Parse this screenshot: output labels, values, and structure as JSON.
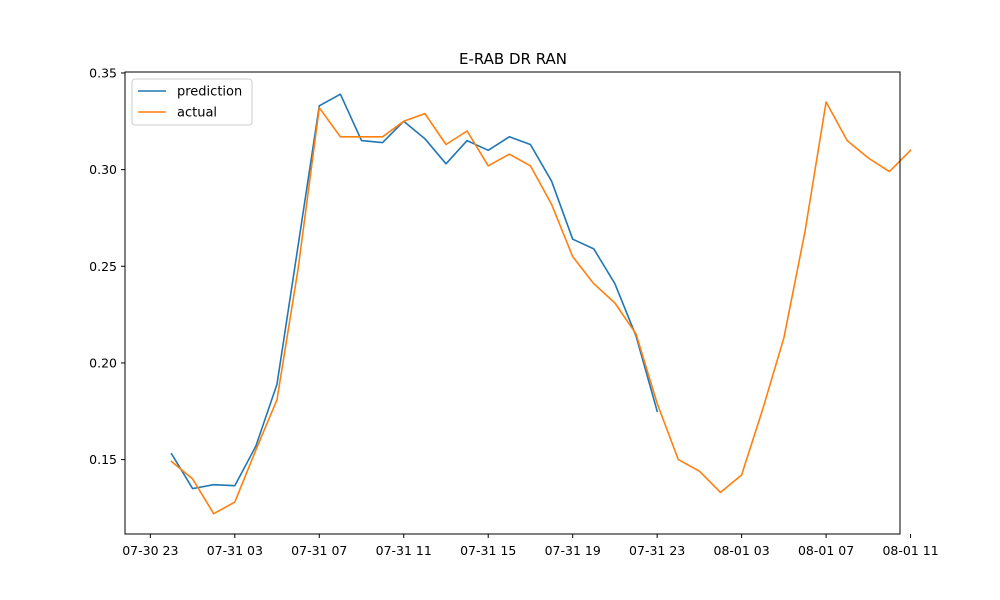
{
  "chart_data": {
    "type": "line",
    "title": "E-RAB DR RAN",
    "xlabel": "",
    "ylabel": "",
    "x_unit": "hour",
    "xlim": [
      -1.2,
      35.5
    ],
    "ylim": [
      0.1115,
      0.3505
    ],
    "x_ticks": [
      {
        "pos": 0,
        "label": "07-30 23"
      },
      {
        "pos": 4,
        "label": "07-31 03"
      },
      {
        "pos": 8,
        "label": "07-31 07"
      },
      {
        "pos": 12,
        "label": "07-31 11"
      },
      {
        "pos": 16,
        "label": "07-31 15"
      },
      {
        "pos": 20,
        "label": "07-31 19"
      },
      {
        "pos": 24,
        "label": "07-31 23"
      },
      {
        "pos": 28,
        "label": "08-01 03"
      },
      {
        "pos": 32,
        "label": "08-01 07"
      },
      {
        "pos": 36,
        "label": "08-01 11"
      }
    ],
    "y_ticks": [
      {
        "pos": 0.15,
        "label": "0.15"
      },
      {
        "pos": 0.2,
        "label": "0.20"
      },
      {
        "pos": 0.25,
        "label": "0.25"
      },
      {
        "pos": 0.3,
        "label": "0.30"
      },
      {
        "pos": 0.35,
        "label": "0.35"
      }
    ],
    "legend_position": "top-left",
    "series": [
      {
        "name": "prediction",
        "color": "#1f77b4",
        "x": [
          1,
          2,
          3,
          4,
          5,
          6,
          7,
          8,
          9,
          10,
          11,
          12,
          13,
          14,
          15,
          16,
          17,
          18,
          19,
          20,
          21,
          22,
          23,
          24
        ],
        "values": [
          0.153,
          0.135,
          0.137,
          0.1365,
          0.157,
          0.189,
          0.261,
          0.333,
          0.339,
          0.315,
          0.314,
          0.325,
          0.316,
          0.303,
          0.315,
          0.31,
          0.317,
          0.313,
          0.294,
          0.264,
          0.259,
          0.241,
          0.214,
          0.175
        ]
      },
      {
        "name": "actual",
        "color": "#ff7f0e",
        "x": [
          1,
          2,
          3,
          4,
          5,
          6,
          7,
          8,
          9,
          10,
          11,
          12,
          13,
          14,
          15,
          16,
          17,
          18,
          19,
          20,
          21,
          22,
          23,
          24,
          25,
          26,
          27,
          28,
          29,
          30,
          31,
          32,
          33,
          34,
          35,
          36
        ],
        "values": [
          0.149,
          0.14,
          0.122,
          0.128,
          0.155,
          0.181,
          0.249,
          0.332,
          0.317,
          0.317,
          0.317,
          0.325,
          0.329,
          0.313,
          0.32,
          0.302,
          0.308,
          0.302,
          0.282,
          0.255,
          0.241,
          0.231,
          0.215,
          0.179,
          0.15,
          0.144,
          0.133,
          0.142,
          0.176,
          0.213,
          0.268,
          0.335,
          0.315,
          0.306,
          0.299,
          0.31
        ]
      }
    ]
  }
}
